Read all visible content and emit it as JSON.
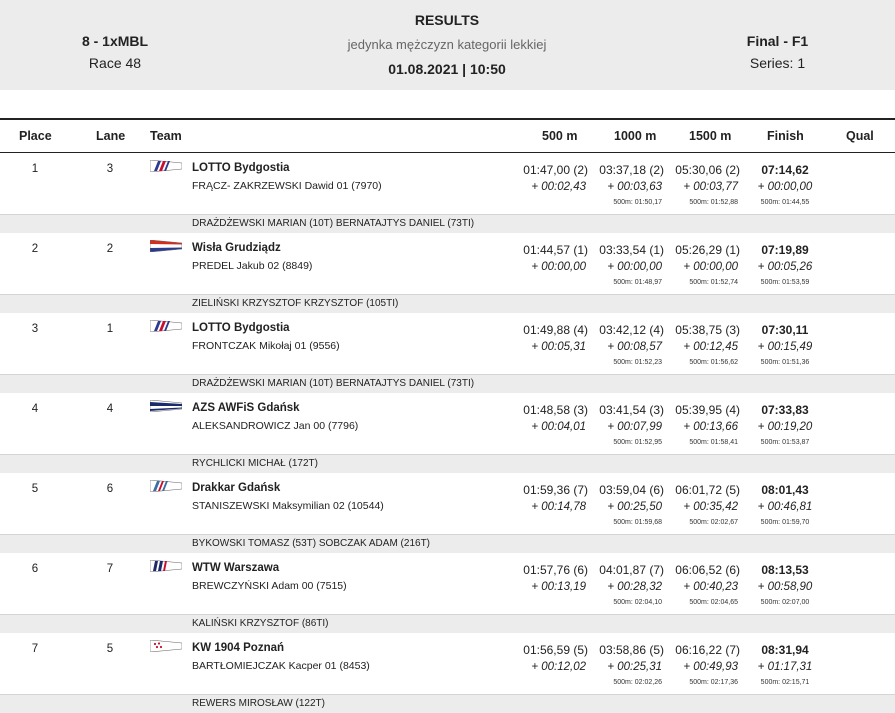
{
  "header": {
    "event_code": "8 - 1xMBL",
    "race": "Race 48",
    "title": "RESULTS",
    "subtitle": "jedynka mężczyzn kategorii lekkiej",
    "datetime": "01.08.2021 | 10:50",
    "phase": "Final - F1",
    "series": "Series: 1"
  },
  "columns": {
    "place": "Place",
    "lane": "Lane",
    "team": "Team",
    "split1": "500 m",
    "split2": "1000 m",
    "split3": "1500 m",
    "finish": "Finish",
    "qual": "Qual"
  },
  "rows": [
    {
      "place": "1",
      "lane": "3",
      "flag": "lotto",
      "team": "LOTTO Bydgostia",
      "crew": "FRĄCZ-  ZAKRZEWSKI Dawid 01 (7970)",
      "s1": "01:47,00 (2)",
      "s1d": "+ 00:02,43",
      "s2": "03:37,18 (2)",
      "s2d": "+ 00:03,63",
      "s2p": "500m: 01:50,17",
      "s3": "05:30,06 (2)",
      "s3d": "+ 00:03,77",
      "s3p": "500m: 01:52,88",
      "fin": "07:14,62",
      "find": "+ 00:00,00",
      "finp": "500m: 01:44,55",
      "coach": "DRAŻDŻEWSKI MARIAN (10T) BERNATAJTYS DANIEL (73TI)"
    },
    {
      "place": "2",
      "lane": "2",
      "flag": "wisla",
      "team": "Wisła Grudziądz",
      "crew": "PREDEL  Jakub 02 (8849)",
      "s1": "01:44,57 (1)",
      "s1d": "+ 00:00,00",
      "s2": "03:33,54 (1)",
      "s2d": "+ 00:00,00",
      "s2p": "500m: 01:48,97",
      "s3": "05:26,29 (1)",
      "s3d": "+ 00:00,00",
      "s3p": "500m: 01:52,74",
      "fin": "07:19,89",
      "find": "+ 00:05,26",
      "finp": "500m: 01:53,59",
      "coach": "ZIELIŃSKI KRZYSZTOF KRZYSZTOF (105TI)"
    },
    {
      "place": "3",
      "lane": "1",
      "flag": "lotto",
      "team": "LOTTO Bydgostia",
      "crew": "FRONTCZAK  Mikołaj 01 (9556)",
      "s1": "01:49,88 (4)",
      "s1d": "+ 00:05,31",
      "s2": "03:42,12 (4)",
      "s2d": "+ 00:08,57",
      "s2p": "500m: 01:52,23",
      "s3": "05:38,75 (3)",
      "s3d": "+ 00:12,45",
      "s3p": "500m: 01:56,62",
      "fin": "07:30,11",
      "find": "+ 00:15,49",
      "finp": "500m: 01:51,36",
      "coach": "DRAŻDŻEWSKI MARIAN (10T) BERNATAJTYS DANIEL (73TI)"
    },
    {
      "place": "4",
      "lane": "4",
      "flag": "azs",
      "team": "AZS AWFiS Gdańsk",
      "crew": "ALEKSANDROWICZ  Jan 00 (7796)",
      "s1": "01:48,58 (3)",
      "s1d": "+ 00:04,01",
      "s2": "03:41,54 (3)",
      "s2d": "+ 00:07,99",
      "s2p": "500m: 01:52,95",
      "s3": "05:39,95 (4)",
      "s3d": "+ 00:13,66",
      "s3p": "500m: 01:58,41",
      "fin": "07:33,83",
      "find": "+ 00:19,20",
      "finp": "500m: 01:53,87",
      "coach": "RYCHLICKI MICHAŁ (172T)"
    },
    {
      "place": "5",
      "lane": "6",
      "flag": "drakkar",
      "team": "Drakkar Gdańsk",
      "crew": "STANISZEWSKI  Maksymilian 02 (10544)",
      "s1": "01:59,36 (7)",
      "s1d": "+ 00:14,78",
      "s2": "03:59,04 (6)",
      "s2d": "+ 00:25,50",
      "s2p": "500m: 01:59,68",
      "s3": "06:01,72 (5)",
      "s3d": "+ 00:35,42",
      "s3p": "500m: 02:02,67",
      "fin": "08:01,43",
      "find": "+ 00:46,81",
      "finp": "500m: 01:59,70",
      "coach": "BYKOWSKI TOMASZ (53T) SOBCZAK ADAM (216T)"
    },
    {
      "place": "6",
      "lane": "7",
      "flag": "wtw",
      "team": "WTW Warszawa",
      "crew": "BREWCZYŃSKI  Adam 00 (7515)",
      "s1": "01:57,76 (6)",
      "s1d": "+ 00:13,19",
      "s2": "04:01,87 (7)",
      "s2d": "+ 00:28,32",
      "s2p": "500m: 02:04,10",
      "s3": "06:06,52 (6)",
      "s3d": "+ 00:40,23",
      "s3p": "500m: 02:04,65",
      "fin": "08:13,53",
      "find": "+ 00:58,90",
      "finp": "500m: 02:07,00",
      "coach": "KALIŃSKI KRZYSZTOF (86TI)"
    },
    {
      "place": "7",
      "lane": "5",
      "flag": "kw",
      "team": "KW 1904 Poznań",
      "crew": "BARTŁOMIEJCZAK  Kacper 01 (8453)",
      "s1": "01:56,59 (5)",
      "s1d": "+ 00:12,02",
      "s2": "03:58,86 (5)",
      "s2d": "+ 00:25,31",
      "s2p": "500m: 02:02,26",
      "s3": "06:16,22 (7)",
      "s3d": "+ 00:49,93",
      "s3p": "500m: 02:17,36",
      "fin": "08:31,94",
      "find": "+ 01:17,31",
      "finp": "500m: 02:15,71",
      "coach": "REWERS MIROSŁAW (122T)"
    }
  ]
}
